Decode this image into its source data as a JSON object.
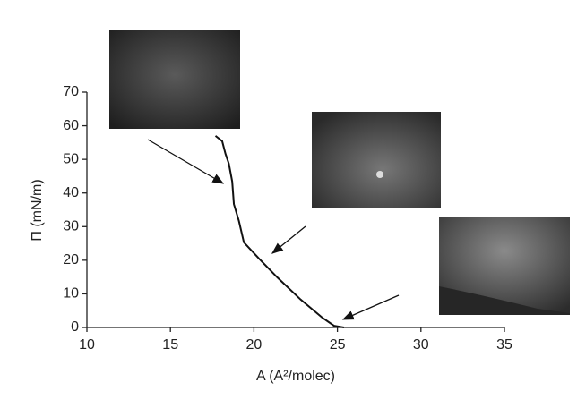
{
  "chart_data": {
    "type": "line",
    "xlabel": "A (A²/molec)",
    "ylabel": "Π (mN/m)",
    "x": [
      17.7,
      18.1,
      18.3,
      18.5,
      18.7,
      18.8,
      19.1,
      19.4,
      20.3,
      21.4,
      22.8,
      24.1,
      24.8,
      25.4
    ],
    "series": [
      {
        "color": "#111111",
        "values": [
          57,
          55.4,
          51.6,
          48.7,
          43.4,
          36.7,
          31.7,
          25.3,
          20.5,
          14.9,
          8.3,
          2.9,
          0.5,
          0
        ]
      }
    ],
    "xlim": [
      10,
      35
    ],
    "xticks": [
      10,
      15,
      20,
      25,
      30,
      35
    ],
    "ylim": [
      0,
      70
    ],
    "yticks": [
      0,
      10,
      20,
      30,
      40,
      50,
      60,
      70
    ],
    "grid": false
  }
}
